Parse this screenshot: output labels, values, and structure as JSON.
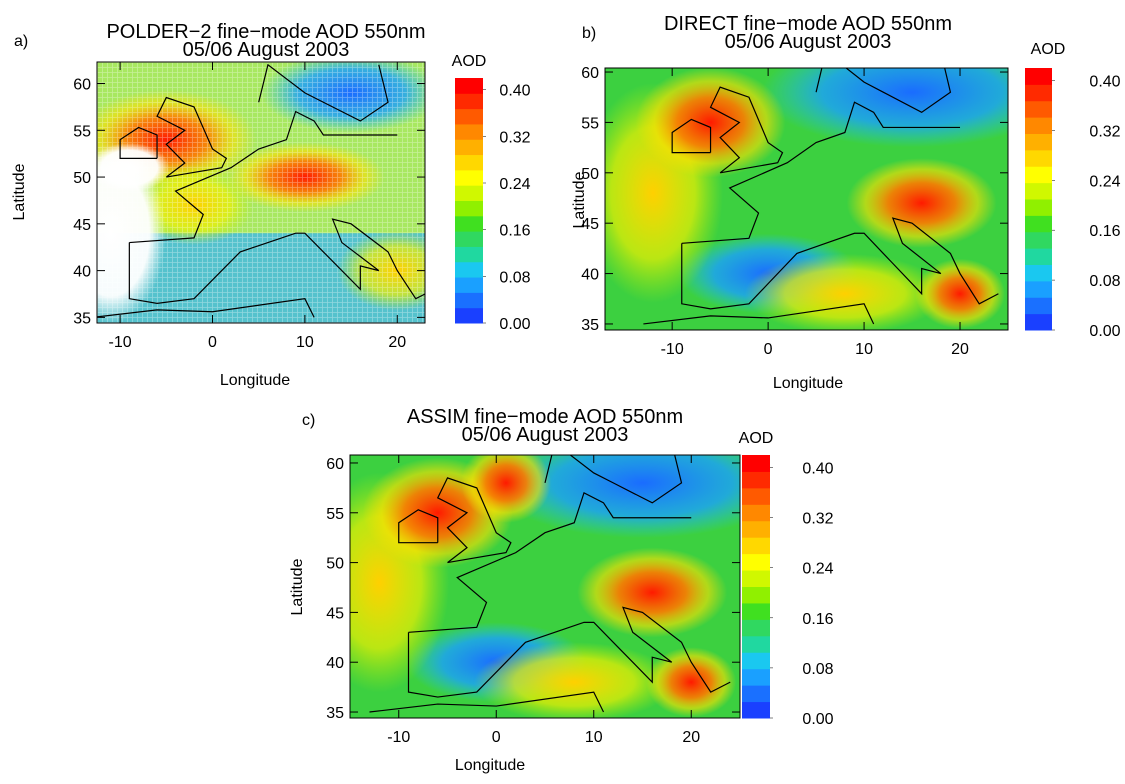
{
  "panels": [
    {
      "label": "a)",
      "title": [
        "POLDER−2 fine−mode AOD  550nm",
        "05/06 August 2003"
      ],
      "xlabel": "Longitude",
      "ylabel": "Latitude",
      "xlim": [
        -12.5,
        23
      ],
      "xticks": [
        -10,
        0,
        10,
        20
      ],
      "ylim": [
        34.4,
        62.3
      ],
      "yticks": [
        35,
        40,
        45,
        50,
        55,
        60
      ],
      "colorbar": {
        "title": "AOD",
        "lim": [
          0,
          0.42
        ],
        "ticks": [
          {
            "value": 0,
            "label": "0.00"
          },
          0.08,
          0.16,
          0.24,
          0.32,
          {
            "value": 0.4,
            "label": "0.40"
          }
        ]
      }
    },
    {
      "label": "b)",
      "title": [
        "DIRECT fine−mode AOD 550nm",
        "05/06 August 2003"
      ],
      "xlabel": "Longitude",
      "ylabel": "Latitude",
      "xlim": [
        -17,
        25
      ],
      "xticks": [
        -10,
        0,
        10,
        20
      ],
      "ylim": [
        34.4,
        60.4
      ],
      "yticks": [
        35,
        40,
        45,
        50,
        55,
        60
      ],
      "colorbar": {
        "title": "AOD",
        "lim": [
          0,
          0.42
        ],
        "ticks": [
          {
            "value": 0,
            "label": "0.00"
          },
          0.08,
          0.16,
          0.24,
          0.32,
          {
            "value": 0.4,
            "label": "0.40"
          }
        ]
      }
    },
    {
      "label": "c)",
      "title": [
        "ASSIM fine−mode AOD 550nm",
        "05/06 August 2003"
      ],
      "xlabel": "Longitude",
      "ylabel": "Latitude",
      "xlim": [
        -15,
        25
      ],
      "xticks": [
        -10,
        0,
        10,
        20
      ],
      "ylim": [
        34.4,
        60.8
      ],
      "yticks": [
        35,
        40,
        45,
        50,
        55,
        60
      ],
      "colorbar": {
        "title": "AOD",
        "lim": [
          0,
          0.42
        ],
        "ticks": [
          {
            "value": 0,
            "label": "0.00"
          },
          0.08,
          0.16,
          0.24,
          0.32,
          {
            "value": 0.4,
            "label": "0.40"
          }
        ]
      }
    }
  ]
}
